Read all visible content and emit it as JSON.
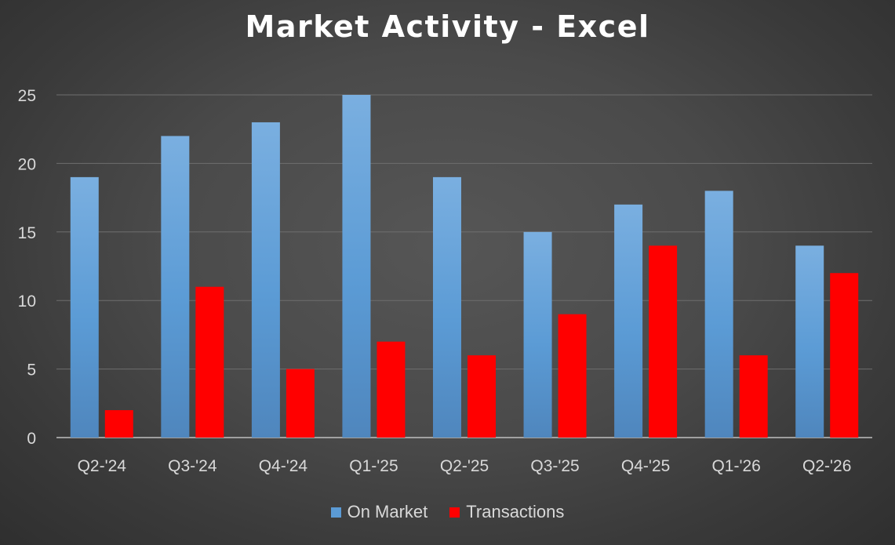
{
  "chart_data": {
    "type": "bar",
    "title": "Market Activity - Excel",
    "xlabel": "",
    "ylabel": "",
    "categories": [
      "Q2-'24",
      "Q3-'24",
      "Q4-'24",
      "Q1-'25",
      "Q2-'25",
      "Q3-'25",
      "Q4-'25",
      "Q1-'26",
      "Q2-'26"
    ],
    "series": [
      {
        "name": "On Market",
        "values": [
          19,
          22,
          23,
          25,
          19,
          15,
          17,
          18,
          14
        ],
        "color": "#5b9bd5"
      },
      {
        "name": "Transactions",
        "values": [
          2,
          11,
          5,
          7,
          6,
          9,
          14,
          6,
          12
        ],
        "color": "#ff0000"
      }
    ],
    "ylim": [
      0,
      25
    ],
    "yticks": [
      0,
      5,
      10,
      15,
      20,
      25
    ],
    "grid": true,
    "legend_position": "bottom"
  }
}
